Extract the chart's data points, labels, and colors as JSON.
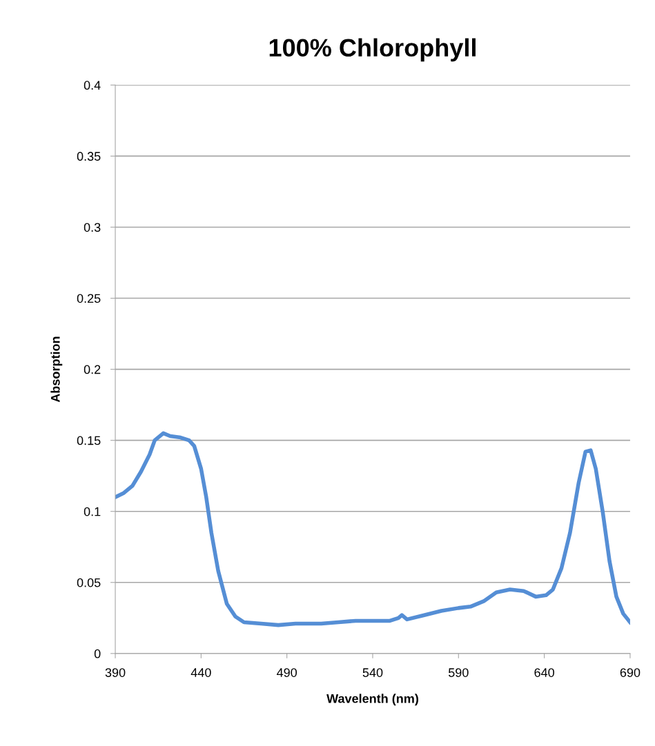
{
  "chart_data": {
    "type": "line",
    "title": "100% Chlorophyll",
    "xlabel": "Wavelenth (nm)",
    "ylabel": "Absorption",
    "xlim": [
      390,
      690
    ],
    "xticks": [
      390,
      440,
      490,
      540,
      590,
      640,
      690
    ],
    "ylim": [
      0,
      0.4
    ],
    "yticks": [
      0,
      0.05,
      0.1,
      0.15,
      0.2,
      0.25,
      0.3,
      0.35,
      0.4
    ],
    "grid": "y",
    "marker": "none",
    "line_style": "solid",
    "series": [
      {
        "color": "#558ed5",
        "x": [
          390,
          395,
          400,
          405,
          410,
          413,
          418,
          422,
          428,
          433,
          436,
          440,
          443,
          446,
          450,
          455,
          460,
          465,
          475,
          485,
          495,
          510,
          520,
          530,
          540,
          550,
          555,
          557,
          560,
          570,
          580,
          590,
          597,
          605,
          612,
          620,
          628,
          635,
          641,
          645,
          650,
          655,
          660,
          664,
          667,
          670,
          674,
          678,
          682,
          686,
          690
        ],
        "values": [
          0.11,
          0.113,
          0.118,
          0.128,
          0.14,
          0.15,
          0.155,
          0.153,
          0.152,
          0.15,
          0.146,
          0.13,
          0.11,
          0.085,
          0.058,
          0.035,
          0.026,
          0.022,
          0.021,
          0.02,
          0.021,
          0.021,
          0.022,
          0.023,
          0.023,
          0.023,
          0.025,
          0.027,
          0.024,
          0.027,
          0.03,
          0.032,
          0.033,
          0.037,
          0.043,
          0.045,
          0.044,
          0.04,
          0.041,
          0.045,
          0.06,
          0.085,
          0.12,
          0.142,
          0.143,
          0.13,
          0.1,
          0.065,
          0.04,
          0.028,
          0.022
        ]
      }
    ]
  }
}
